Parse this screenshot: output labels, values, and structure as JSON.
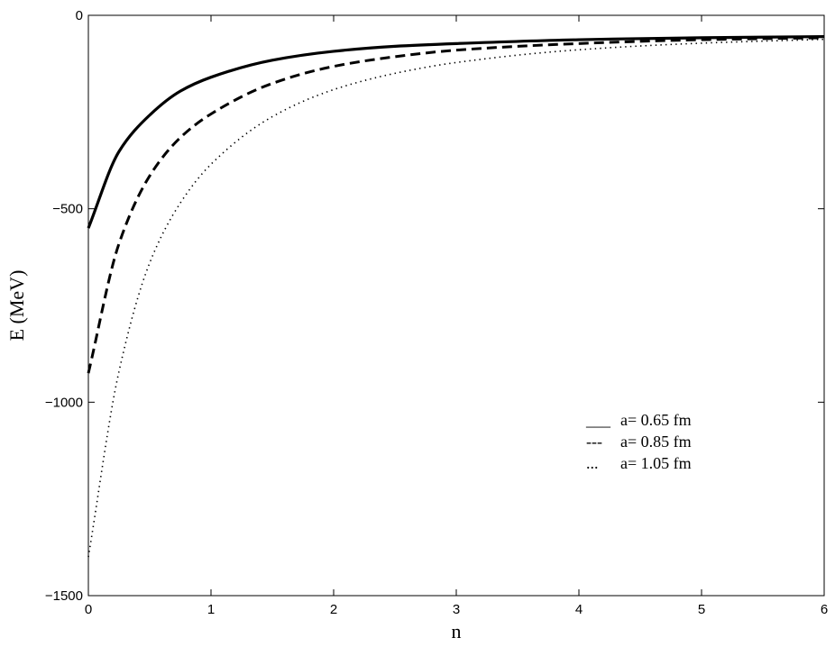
{
  "chart_data": {
    "type": "line",
    "xlabel": "n",
    "ylabel": "E (MeV)",
    "xlim": [
      0,
      6
    ],
    "ylim": [
      -1500,
      0
    ],
    "x_ticks": [
      0,
      1,
      2,
      3,
      4,
      5,
      6
    ],
    "y_ticks": [
      0,
      -500,
      -1000,
      -1500
    ],
    "x_tick_labels": [
      "0",
      "1",
      "2",
      "3",
      "4",
      "5",
      "6"
    ],
    "y_tick_labels": [
      "0",
      "−500",
      "−1000",
      "−1500"
    ],
    "grid": false,
    "legend_position": "lower-right",
    "x": [
      0,
      0.25,
      0.5,
      0.75,
      1,
      1.5,
      2,
      2.5,
      3,
      4,
      5,
      6
    ],
    "series": [
      {
        "name": "a= 0.65 fm",
        "legend_marker": "___",
        "style": "solid",
        "values": [
          -550,
          -352,
          -258,
          -196,
          -160,
          -116,
          -93,
          -80,
          -73,
          -63,
          -58,
          -55
        ]
      },
      {
        "name": "a= 0.85 fm",
        "legend_marker": "---",
        "style": "dashed",
        "values": [
          -925,
          -590,
          -415,
          -316,
          -255,
          -176,
          -132,
          -107,
          -90,
          -73,
          -63,
          -58
        ]
      },
      {
        "name": "a= 1.05 fm",
        "legend_marker": "...",
        "style": "dotted",
        "values": [
          -1400,
          -920,
          -640,
          -485,
          -385,
          -262,
          -192,
          -150,
          -122,
          -89,
          -72,
          -62
        ]
      }
    ]
  }
}
